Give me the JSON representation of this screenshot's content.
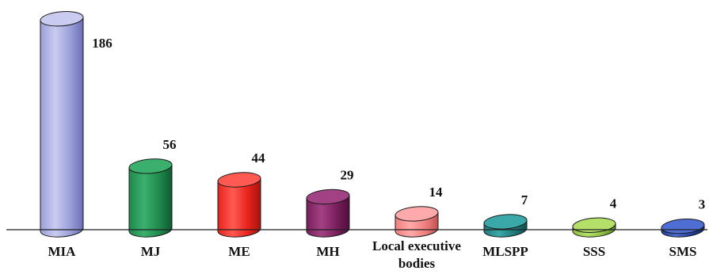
{
  "chart_data": {
    "type": "bar",
    "style": "3d-cylinder",
    "categories": [
      "MIA",
      "MJ",
      "ME",
      "MH",
      "Local executive bodies",
      "MLSPP",
      "SSS",
      "SMS"
    ],
    "category_lines": [
      [
        "MIA"
      ],
      [
        "MJ"
      ],
      [
        "ME"
      ],
      [
        "MH"
      ],
      [
        "Local executive",
        "bodies"
      ],
      [
        "MLSPP"
      ],
      [
        "SSS"
      ],
      [
        "SMS"
      ]
    ],
    "values": [
      186,
      56,
      44,
      29,
      14,
      7,
      4,
      3
    ],
    "data_labels": [
      "186",
      "56",
      "44",
      "29",
      "14",
      "7",
      "4",
      "3"
    ],
    "ylim": [
      0,
      190
    ],
    "grid": false,
    "legend": "none",
    "colors": [
      "#9b9fd9",
      "#1f8a4c",
      "#e8231c",
      "#7a1e5c",
      "#f07f7f",
      "#1f7a7a",
      "#8cbf3f",
      "#1f3d99"
    ],
    "shadow_colors": [
      "#6a6fb5",
      "#0f5a30",
      "#a51410",
      "#4d0f3a",
      "#c25252",
      "#0f5252",
      "#5e8a22",
      "#112670"
    ],
    "top_colors": [
      "#c9ccf0",
      "#3bb06c",
      "#ff5a52",
      "#a24284",
      "#ffaaaa",
      "#3aa8a8",
      "#b4e06a",
      "#4e6ed4"
    ]
  }
}
